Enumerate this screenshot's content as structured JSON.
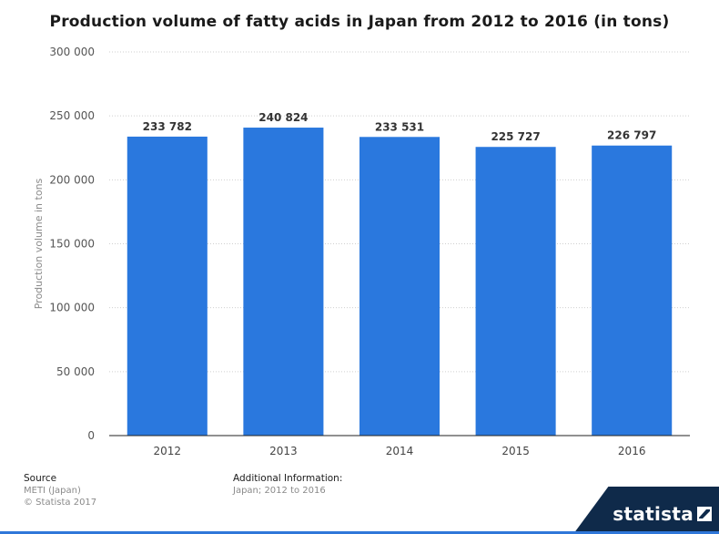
{
  "chart_data": {
    "type": "bar",
    "title": "Production volume of fatty acids in Japan from 2012 to 2016 (in tons)",
    "xlabel": "",
    "ylabel": "Production volume in tons",
    "categories": [
      "2012",
      "2013",
      "2014",
      "2015",
      "2016"
    ],
    "values": [
      233782,
      240824,
      233531,
      225727,
      226797
    ],
    "value_labels": [
      "233 782",
      "240 824",
      "233 531",
      "225 727",
      "226 797"
    ],
    "ylim": [
      0,
      300000
    ],
    "yticks": [
      0,
      50000,
      100000,
      150000,
      200000,
      250000,
      300000
    ],
    "ytick_labels": [
      "0",
      "50 000",
      "100 000",
      "150 000",
      "200 000",
      "250 000",
      "300 000"
    ],
    "grid": true,
    "bar_color": "#2a78de"
  },
  "footer": {
    "source_heading": "Source",
    "source_lines": [
      "METI (Japan)",
      "© Statista 2017"
    ],
    "info_heading": "Additional Information:",
    "info_lines": [
      "Japan; 2012 to 2016"
    ]
  },
  "brand": {
    "name": "statista",
    "accent": "#2f77d9",
    "dark": "#0f2a4a"
  }
}
